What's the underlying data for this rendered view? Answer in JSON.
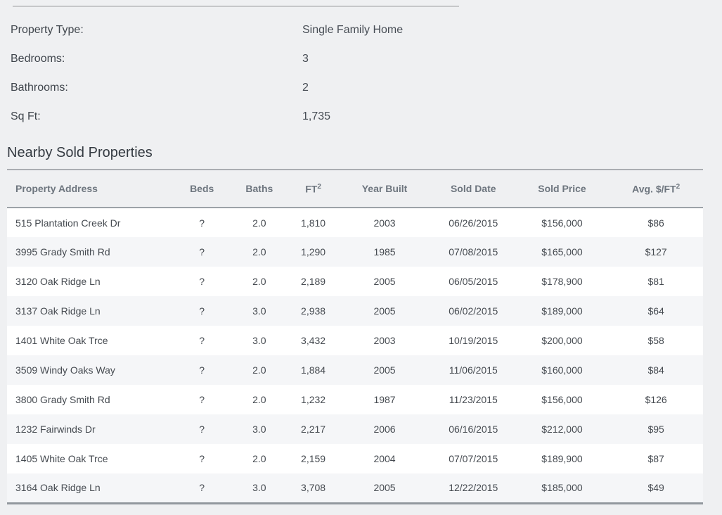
{
  "property_details": {
    "fields": [
      {
        "label": "Property Type:",
        "value": "Single Family Home"
      },
      {
        "label": "Bedrooms:",
        "value": "3"
      },
      {
        "label": "Bathrooms:",
        "value": "2"
      },
      {
        "label": "Sq Ft:",
        "value": "1,735"
      }
    ]
  },
  "nearby_sold": {
    "title": "Nearby Sold Properties",
    "table": {
      "headers": [
        {
          "key": "property-address",
          "label": "Property Address",
          "sup": ""
        },
        {
          "key": "beds",
          "label": "Beds",
          "sup": ""
        },
        {
          "key": "baths",
          "label": "Baths",
          "sup": ""
        },
        {
          "key": "sqft",
          "label": "FT",
          "sup": "2"
        },
        {
          "key": "year-built",
          "label": "Year Built",
          "sup": ""
        },
        {
          "key": "sold-date",
          "label": "Sold Date",
          "sup": ""
        },
        {
          "key": "sold-price",
          "label": "Sold Price",
          "sup": ""
        },
        {
          "key": "avg-price-sqft",
          "label": "Avg. $/FT",
          "sup": "2"
        }
      ],
      "rows": [
        [
          "515 Plantation Creek Dr",
          "?",
          "2.0",
          "1,810",
          "2003",
          "06/26/2015",
          "$156,000",
          "$86"
        ],
        [
          "3995 Grady Smith Rd",
          "?",
          "2.0",
          "1,290",
          "1985",
          "07/08/2015",
          "$165,000",
          "$127"
        ],
        [
          "3120 Oak Ridge Ln",
          "?",
          "2.0",
          "2,189",
          "2005",
          "06/05/2015",
          "$178,900",
          "$81"
        ],
        [
          "3137 Oak Ridge Ln",
          "?",
          "3.0",
          "2,938",
          "2005",
          "06/02/2015",
          "$189,000",
          "$64"
        ],
        [
          "1401 White Oak Trce",
          "?",
          "3.0",
          "3,432",
          "2003",
          "10/19/2015",
          "$200,000",
          "$58"
        ],
        [
          "3509 Windy Oaks Way",
          "?",
          "2.0",
          "1,884",
          "2005",
          "11/06/2015",
          "$160,000",
          "$84"
        ],
        [
          "3800 Grady Smith Rd",
          "?",
          "2.0",
          "1,232",
          "1987",
          "11/23/2015",
          "$156,000",
          "$126"
        ],
        [
          "1232 Fairwinds Dr",
          "?",
          "3.0",
          "2,217",
          "2006",
          "06/16/2015",
          "$212,000",
          "$95"
        ],
        [
          "1405 White Oak Trce",
          "?",
          "2.0",
          "2,159",
          "2004",
          "07/07/2015",
          "$189,900",
          "$87"
        ],
        [
          "3164 Oak Ridge Ln",
          "?",
          "3.0",
          "3,708",
          "2005",
          "12/22/2015",
          "$185,000",
          "$49"
        ]
      ]
    }
  }
}
